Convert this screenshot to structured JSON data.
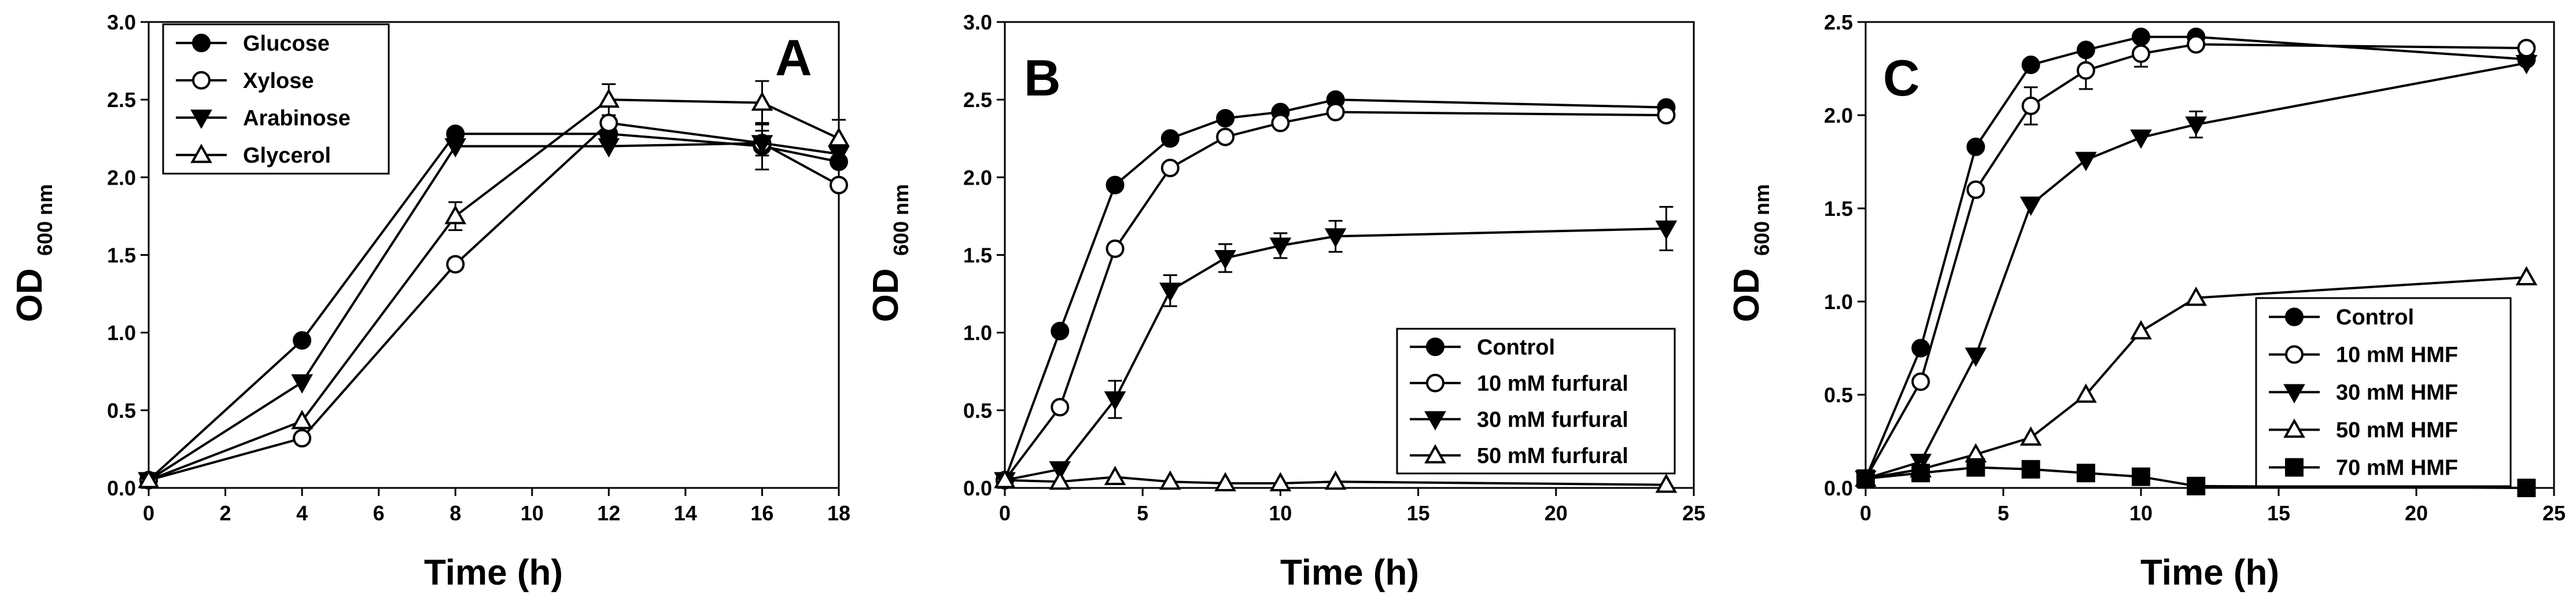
{
  "figure": {
    "panels": [
      "A",
      "B",
      "C"
    ]
  },
  "chart_data": [
    {
      "type": "line",
      "panel_label": "A",
      "xlabel": "Time (h)",
      "ylabel_main": "OD",
      "ylabel_sub": "600 nm",
      "xlim": [
        0,
        18
      ],
      "ylim": [
        0,
        3.0
      ],
      "xticks": [
        0,
        2,
        4,
        6,
        8,
        10,
        12,
        14,
        16,
        18
      ],
      "xtick_labels": [
        "0",
        "2",
        "4",
        "6",
        "8",
        "10",
        "12",
        "14",
        "16",
        "18"
      ],
      "yticks": [
        0,
        0.5,
        1.0,
        1.5,
        2.0,
        2.5,
        3.0
      ],
      "ytick_labels": [
        "0.0",
        "0.5",
        "1.0",
        "1.5",
        "2.0",
        "2.5",
        "3.0"
      ],
      "legend_position": "top-left",
      "series": [
        {
          "name": "Glucose",
          "marker": "filled-circle",
          "x": [
            0,
            4,
            8,
            12,
            16,
            18
          ],
          "y": [
            0.05,
            0.95,
            2.28,
            2.28,
            2.2,
            2.1
          ],
          "err": [
            0,
            0,
            0,
            0,
            0.15,
            0
          ]
        },
        {
          "name": "Xylose",
          "marker": "open-circle",
          "x": [
            0,
            4,
            8,
            12,
            16,
            18
          ],
          "y": [
            0.05,
            0.32,
            1.44,
            2.35,
            2.22,
            1.95
          ],
          "err": [
            0,
            0,
            0,
            0,
            0.08,
            0
          ]
        },
        {
          "name": "Arabinose",
          "marker": "filled-triangle-down",
          "x": [
            0,
            4,
            8,
            12,
            16,
            18
          ],
          "y": [
            0.05,
            0.68,
            2.2,
            2.2,
            2.22,
            2.15
          ],
          "err": [
            0,
            0,
            0,
            0,
            0,
            0
          ]
        },
        {
          "name": "Glycerol",
          "marker": "open-triangle-up",
          "x": [
            0,
            4,
            8,
            12,
            16,
            18
          ],
          "y": [
            0.05,
            0.43,
            1.75,
            2.5,
            2.48,
            2.25
          ],
          "err": [
            0,
            0,
            0.09,
            0.1,
            0.14,
            0.12
          ]
        }
      ]
    },
    {
      "type": "line",
      "panel_label": "B",
      "xlabel": "Time (h)",
      "ylabel_main": "OD",
      "ylabel_sub": "600 nm",
      "xlim": [
        0,
        25
      ],
      "ylim": [
        0,
        3.0
      ],
      "xticks": [
        0,
        5,
        10,
        15,
        20,
        25
      ],
      "xtick_labels": [
        "0",
        "5",
        "10",
        "15",
        "20",
        "25"
      ],
      "yticks": [
        0,
        0.5,
        1.0,
        1.5,
        2.0,
        2.5,
        3.0
      ],
      "ytick_labels": [
        "0.0",
        "0.5",
        "1.0",
        "1.5",
        "2.0",
        "2.5",
        "3.0"
      ],
      "legend_position": "bottom-right",
      "series": [
        {
          "name": "Control",
          "marker": "filled-circle",
          "x": [
            0,
            2,
            4,
            6,
            8,
            10,
            12,
            24
          ],
          "y": [
            0.05,
            1.01,
            1.95,
            2.25,
            2.38,
            2.42,
            2.5,
            2.45
          ],
          "err": [
            0,
            0,
            0,
            0,
            0,
            0,
            0,
            0
          ]
        },
        {
          "name": "10 mM furfural",
          "marker": "open-circle",
          "x": [
            0,
            2,
            4,
            6,
            8,
            10,
            12,
            24
          ],
          "y": [
            0.05,
            0.52,
            1.54,
            2.06,
            2.26,
            2.35,
            2.42,
            2.4
          ],
          "err": [
            0,
            0,
            0,
            0,
            0,
            0,
            0,
            0
          ]
        },
        {
          "name": "30 mM furfural",
          "marker": "filled-triangle-down",
          "x": [
            0,
            2,
            4,
            6,
            8,
            10,
            12,
            24
          ],
          "y": [
            0.05,
            0.12,
            0.57,
            1.27,
            1.48,
            1.56,
            1.62,
            1.67
          ],
          "err": [
            0,
            0,
            0.12,
            0.1,
            0.09,
            0.08,
            0.1,
            0.14
          ]
        },
        {
          "name": "50 mM furfural",
          "marker": "open-triangle-up",
          "x": [
            0,
            2,
            4,
            6,
            8,
            10,
            12,
            24
          ],
          "y": [
            0.05,
            0.04,
            0.07,
            0.04,
            0.03,
            0.03,
            0.04,
            0.02
          ],
          "err": [
            0,
            0,
            0,
            0,
            0,
            0,
            0,
            0
          ]
        }
      ]
    },
    {
      "type": "line",
      "panel_label": "C",
      "xlabel": "Time (h)",
      "ylabel_main": "OD",
      "ylabel_sub": "600 nm",
      "xlim": [
        0,
        25
      ],
      "ylim": [
        0,
        2.5
      ],
      "xticks": [
        0,
        5,
        10,
        15,
        20,
        25
      ],
      "xtick_labels": [
        "0",
        "5",
        "10",
        "15",
        "20",
        "25"
      ],
      "yticks": [
        0,
        0.5,
        1.0,
        1.5,
        2.0,
        2.5
      ],
      "ytick_labels": [
        "0.0",
        "0.5",
        "1.0",
        "1.5",
        "2.0",
        "2.5"
      ],
      "legend_position": "bottom-right",
      "series": [
        {
          "name": "Control",
          "marker": "filled-circle",
          "x": [
            0,
            2,
            4,
            6,
            8,
            10,
            12,
            24
          ],
          "y": [
            0.05,
            0.75,
            1.83,
            2.27,
            2.35,
            2.42,
            2.42,
            2.3
          ],
          "err": [
            0,
            0,
            0,
            0,
            0,
            0,
            0,
            0
          ]
        },
        {
          "name": "10 mM HMF",
          "marker": "open-circle",
          "x": [
            0,
            2,
            4,
            6,
            8,
            10,
            12,
            24
          ],
          "y": [
            0.05,
            0.57,
            1.6,
            2.05,
            2.24,
            2.33,
            2.38,
            2.36
          ],
          "err": [
            0,
            0,
            0,
            0.1,
            0.1,
            0.07,
            0,
            0
          ]
        },
        {
          "name": "30 mM HMF",
          "marker": "filled-triangle-down",
          "x": [
            0,
            2,
            4,
            6,
            8,
            10,
            12,
            24
          ],
          "y": [
            0.05,
            0.14,
            0.71,
            1.52,
            1.76,
            1.88,
            1.95,
            2.28
          ],
          "err": [
            0,
            0,
            0,
            0,
            0,
            0,
            0.07,
            0
          ]
        },
        {
          "name": "50 mM HMF",
          "marker": "open-triangle-up",
          "x": [
            0,
            2,
            4,
            6,
            8,
            10,
            12,
            24
          ],
          "y": [
            0.05,
            0.1,
            0.18,
            0.27,
            0.5,
            0.84,
            1.02,
            1.13
          ],
          "err": [
            0,
            0,
            0,
            0,
            0,
            0,
            0,
            0
          ]
        },
        {
          "name": "70 mM HMF",
          "marker": "filled-square",
          "x": [
            0,
            2,
            4,
            6,
            8,
            10,
            12,
            24
          ],
          "y": [
            0.05,
            0.08,
            0.11,
            0.1,
            0.08,
            0.06,
            0.01,
            0.0
          ],
          "err": [
            0,
            0,
            0,
            0,
            0,
            0,
            0,
            0
          ]
        }
      ]
    }
  ]
}
